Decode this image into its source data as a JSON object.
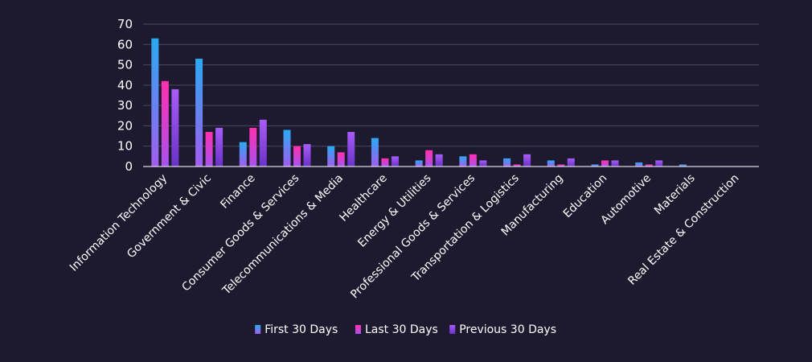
{
  "chart_data": {
    "type": "bar",
    "title": "",
    "xlabel": "",
    "ylabel": "",
    "ylim": [
      0,
      70
    ],
    "yticks": [
      0,
      10,
      20,
      30,
      40,
      50,
      60,
      70
    ],
    "grid": true,
    "legend_position": "bottom",
    "categories": [
      "Information Technology",
      "Government & Civic",
      "Finance",
      "Consumer Goods & Services",
      "Telecommunications & Media",
      "Healthcare",
      "Energy & Utilities",
      "Professional Goods & Services",
      "Transportation & Logistics",
      "Manufacturing",
      "Education",
      "Automotive",
      "Materials",
      "Real Estate & Construction"
    ],
    "series": [
      {
        "name": "First 30 Days",
        "values": [
          63,
          53,
          12,
          18,
          10,
          14,
          3,
          5,
          4,
          3,
          1,
          2,
          1,
          0
        ],
        "color_top": "#2aa9f2",
        "color_bottom": "#a25cf0"
      },
      {
        "name": "Last 30 Days",
        "values": [
          42,
          17,
          19,
          10,
          7,
          4,
          8,
          6,
          1,
          1,
          3,
          1,
          0,
          0
        ],
        "color_top": "#ff2fae",
        "color_bottom": "#a852ef"
      },
      {
        "name": "Previous 30 Days",
        "values": [
          38,
          19,
          23,
          11,
          17,
          5,
          6,
          3,
          6,
          4,
          3,
          3,
          0,
          0
        ],
        "color_top": "#a85cf8",
        "color_bottom": "#6a32c8"
      }
    ]
  }
}
